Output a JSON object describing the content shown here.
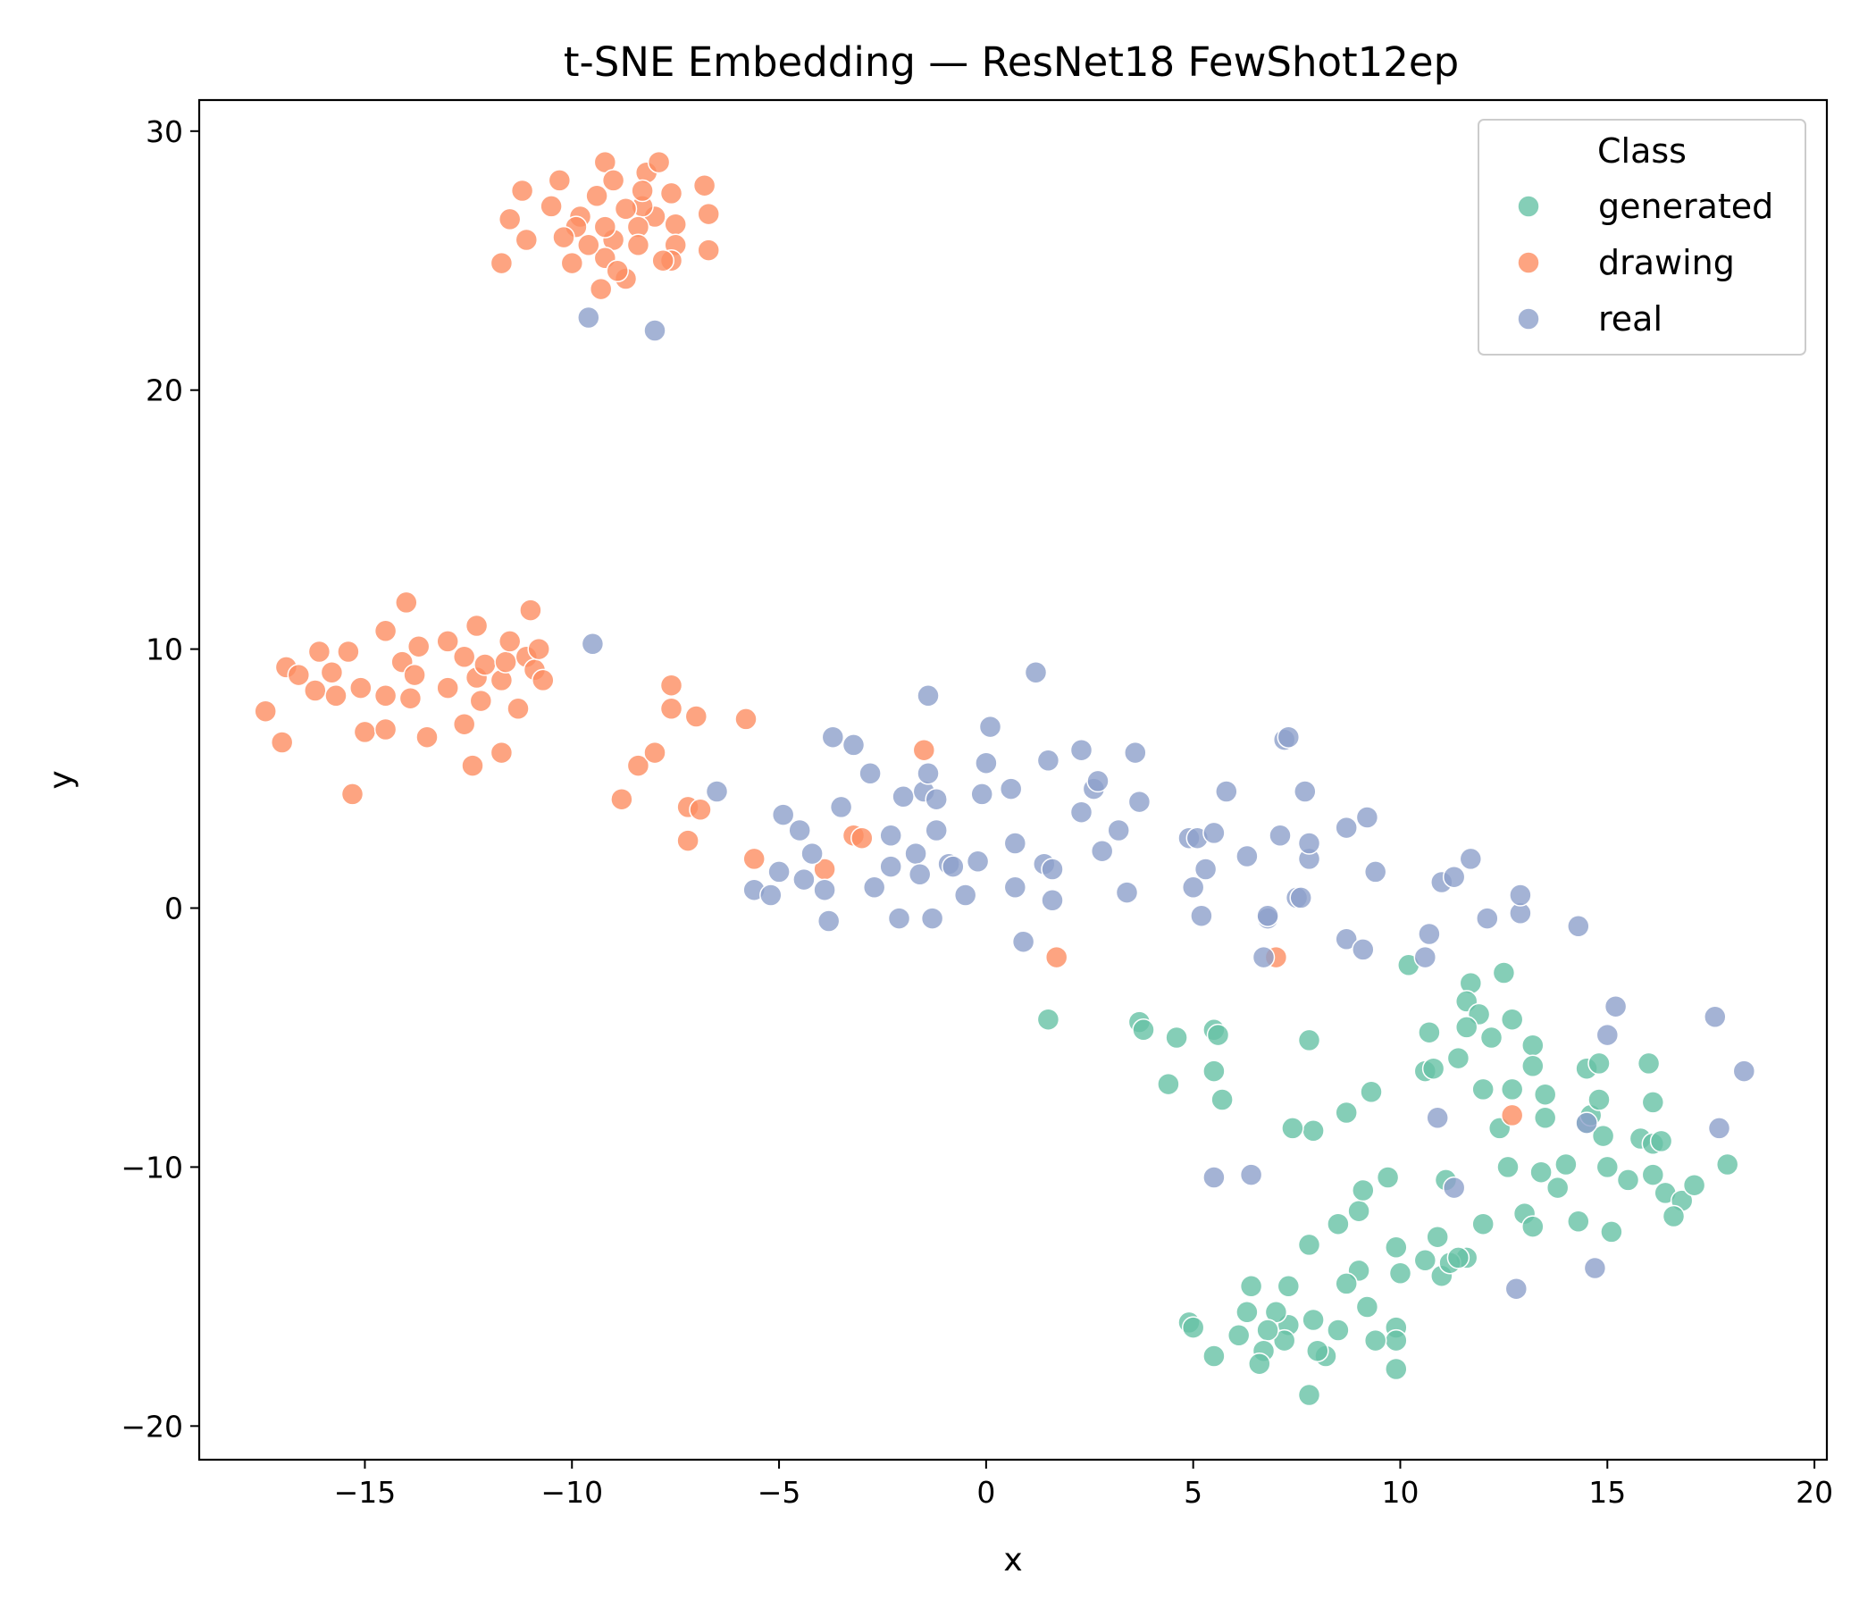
{
  "chart_data": {
    "type": "scatter",
    "title": "t-SNE Embedding — ResNet18 FewShot12ep",
    "xlabel": "x",
    "ylabel": "y",
    "xlim": [
      -19,
      20.3
    ],
    "ylim": [
      -21.3,
      31.2
    ],
    "xticks": [
      -15,
      -10,
      -5,
      0,
      5,
      10,
      15,
      20
    ],
    "yticks": [
      30,
      20,
      10,
      0,
      -10,
      -20
    ],
    "grid": false,
    "legend": {
      "title": "Class",
      "placement": "top-right"
    },
    "series": [
      {
        "name": "generated",
        "color": "#66c2a5",
        "points": [
          [
            10.2,
            -2.2
          ],
          [
            11.7,
            -2.9
          ],
          [
            12.5,
            -2.5
          ],
          [
            11.6,
            -3.6
          ],
          [
            11.9,
            -4.1
          ],
          [
            11.6,
            -4.6
          ],
          [
            12.2,
            -5.0
          ],
          [
            10.7,
            -4.8
          ],
          [
            10.6,
            -6.3
          ],
          [
            10.8,
            -6.2
          ],
          [
            11.4,
            -5.8
          ],
          [
            12.0,
            -7.0
          ],
          [
            12.4,
            -8.5
          ],
          [
            12.7,
            -7.0
          ],
          [
            12.7,
            -4.3
          ],
          [
            13.2,
            -5.3
          ],
          [
            13.5,
            -7.2
          ],
          [
            13.5,
            -8.1
          ],
          [
            13.2,
            -6.1
          ],
          [
            12.6,
            -10.0
          ],
          [
            13.4,
            -10.2
          ],
          [
            14.0,
            -9.9
          ],
          [
            13.8,
            -10.8
          ],
          [
            14.5,
            -8.3
          ],
          [
            14.6,
            -8.0
          ],
          [
            14.9,
            -8.8
          ],
          [
            14.8,
            -7.4
          ],
          [
            14.5,
            -6.2
          ],
          [
            14.8,
            -6.0
          ],
          [
            15.0,
            -10.0
          ],
          [
            15.5,
            -10.5
          ],
          [
            15.8,
            -8.9
          ],
          [
            16.1,
            -9.1
          ],
          [
            16.3,
            -9.0
          ],
          [
            16.1,
            -10.3
          ],
          [
            16.1,
            -7.5
          ],
          [
            16.0,
            -6.0
          ],
          [
            16.4,
            -11.0
          ],
          [
            16.8,
            -11.3
          ],
          [
            17.1,
            -10.7
          ],
          [
            16.6,
            -11.9
          ],
          [
            17.9,
            -9.9
          ],
          [
            15.1,
            -12.5
          ],
          [
            14.3,
            -12.1
          ],
          [
            13.0,
            -11.8
          ],
          [
            13.2,
            -12.3
          ],
          [
            12.0,
            -12.2
          ],
          [
            11.6,
            -13.5
          ],
          [
            11.0,
            -14.2
          ],
          [
            11.2,
            -13.7
          ],
          [
            10.6,
            -13.6
          ],
          [
            10.9,
            -12.7
          ],
          [
            11.1,
            -10.5
          ],
          [
            9.9,
            -13.1
          ],
          [
            10.0,
            -14.1
          ],
          [
            9.7,
            -10.4
          ],
          [
            9.9,
            -16.2
          ],
          [
            9.9,
            -16.7
          ],
          [
            9.9,
            -17.8
          ],
          [
            9.4,
            -16.7
          ],
          [
            9.2,
            -15.4
          ],
          [
            9.0,
            -14.0
          ],
          [
            9.0,
            -11.7
          ],
          [
            9.1,
            -10.9
          ],
          [
            9.3,
            -7.1
          ],
          [
            8.7,
            -7.9
          ],
          [
            8.7,
            -14.5
          ],
          [
            8.5,
            -12.2
          ],
          [
            8.5,
            -16.3
          ],
          [
            8.2,
            -17.3
          ],
          [
            8.0,
            -17.1
          ],
          [
            7.9,
            -15.9
          ],
          [
            7.8,
            -13.0
          ],
          [
            7.8,
            -5.1
          ],
          [
            7.9,
            -8.6
          ],
          [
            7.4,
            -8.5
          ],
          [
            7.3,
            -14.6
          ],
          [
            7.3,
            -16.1
          ],
          [
            7.2,
            -16.7
          ],
          [
            7.0,
            -15.6
          ],
          [
            6.8,
            -16.3
          ],
          [
            6.7,
            -17.1
          ],
          [
            6.6,
            -17.6
          ],
          [
            6.3,
            -15.6
          ],
          [
            6.4,
            -14.6
          ],
          [
            6.1,
            -16.5
          ],
          [
            5.5,
            -17.3
          ],
          [
            4.9,
            -16.0
          ],
          [
            5.0,
            -16.2
          ],
          [
            5.7,
            -7.4
          ],
          [
            5.5,
            -6.3
          ],
          [
            5.5,
            -4.7
          ],
          [
            5.6,
            -4.9
          ],
          [
            4.6,
            -5.0
          ],
          [
            4.4,
            -6.8
          ],
          [
            3.7,
            -4.4
          ],
          [
            3.8,
            -4.7
          ],
          [
            1.5,
            -4.3
          ],
          [
            7.8,
            -18.8
          ],
          [
            11.4,
            -13.5
          ]
        ]
      },
      {
        "name": "drawing",
        "color": "#fc8d62",
        "points": [
          [
            -9.2,
            28.8
          ],
          [
            -9.0,
            28.1
          ],
          [
            -8.2,
            28.4
          ],
          [
            -7.9,
            28.8
          ],
          [
            -6.8,
            27.9
          ],
          [
            -6.7,
            26.8
          ],
          [
            -6.7,
            25.4
          ],
          [
            -7.6,
            27.6
          ],
          [
            -7.5,
            26.4
          ],
          [
            -7.5,
            25.6
          ],
          [
            -7.6,
            25.0
          ],
          [
            -7.8,
            25.0
          ],
          [
            -8.0,
            26.7
          ],
          [
            -8.3,
            27.1
          ],
          [
            -8.4,
            26.3
          ],
          [
            -8.4,
            25.6
          ],
          [
            -8.7,
            27.0
          ],
          [
            -8.7,
            24.3
          ],
          [
            -9.0,
            25.8
          ],
          [
            -9.2,
            26.3
          ],
          [
            -9.2,
            25.1
          ],
          [
            -9.3,
            23.9
          ],
          [
            -9.4,
            27.5
          ],
          [
            -9.6,
            25.6
          ],
          [
            -9.8,
            26.7
          ],
          [
            -9.9,
            26.3
          ],
          [
            -10.0,
            24.9
          ],
          [
            -10.2,
            25.9
          ],
          [
            -10.3,
            28.1
          ],
          [
            -10.5,
            27.1
          ],
          [
            -11.1,
            25.8
          ],
          [
            -11.2,
            27.7
          ],
          [
            -11.5,
            26.6
          ],
          [
            -11.7,
            24.9
          ],
          [
            -8.3,
            27.7
          ],
          [
            -8.9,
            24.6
          ],
          [
            -17.4,
            7.6
          ],
          [
            -17.0,
            6.4
          ],
          [
            -16.9,
            9.3
          ],
          [
            -16.6,
            9.0
          ],
          [
            -16.2,
            8.4
          ],
          [
            -16.1,
            9.9
          ],
          [
            -15.8,
            9.1
          ],
          [
            -15.7,
            8.2
          ],
          [
            -15.4,
            9.9
          ],
          [
            -15.3,
            4.4
          ],
          [
            -15.1,
            8.5
          ],
          [
            -15.0,
            6.8
          ],
          [
            -14.5,
            10.7
          ],
          [
            -14.5,
            8.2
          ],
          [
            -14.5,
            6.9
          ],
          [
            -14.1,
            9.5
          ],
          [
            -14.0,
            11.8
          ],
          [
            -13.9,
            8.1
          ],
          [
            -13.8,
            9.0
          ],
          [
            -13.7,
            10.1
          ],
          [
            -13.5,
            6.6
          ],
          [
            -13.0,
            10.3
          ],
          [
            -13.0,
            8.5
          ],
          [
            -12.6,
            9.7
          ],
          [
            -12.6,
            7.1
          ],
          [
            -12.4,
            5.5
          ],
          [
            -12.3,
            10.9
          ],
          [
            -12.3,
            8.9
          ],
          [
            -12.2,
            8.0
          ],
          [
            -12.1,
            9.4
          ],
          [
            -11.7,
            6.0
          ],
          [
            -11.7,
            8.8
          ],
          [
            -11.6,
            9.5
          ],
          [
            -11.5,
            10.3
          ],
          [
            -11.3,
            7.7
          ],
          [
            -11.1,
            9.7
          ],
          [
            -11.0,
            11.5
          ],
          [
            -10.9,
            9.2
          ],
          [
            -10.8,
            10.0
          ],
          [
            -10.7,
            8.8
          ],
          [
            -8.8,
            4.2
          ],
          [
            -8.4,
            5.5
          ],
          [
            -8.0,
            6.0
          ],
          [
            -7.6,
            8.6
          ],
          [
            -7.6,
            7.7
          ],
          [
            -7.2,
            3.9
          ],
          [
            -7.2,
            2.6
          ],
          [
            -7.0,
            7.4
          ],
          [
            -6.9,
            3.8
          ],
          [
            -5.8,
            7.3
          ],
          [
            -5.6,
            1.9
          ],
          [
            -3.9,
            1.5
          ],
          [
            -3.2,
            2.8
          ],
          [
            -3.0,
            2.7
          ],
          [
            -1.5,
            6.1
          ],
          [
            1.7,
            -1.9
          ],
          [
            7.0,
            -1.9
          ],
          [
            12.7,
            -8.0
          ]
        ]
      },
      {
        "name": "real",
        "color": "#8da0cb",
        "points": [
          [
            -9.6,
            22.8
          ],
          [
            -8.0,
            22.3
          ],
          [
            -9.5,
            10.2
          ],
          [
            -6.5,
            4.5
          ],
          [
            -5.6,
            0.7
          ],
          [
            -5.2,
            0.5
          ],
          [
            -5.0,
            1.4
          ],
          [
            -4.9,
            3.6
          ],
          [
            -4.5,
            3.0
          ],
          [
            -4.4,
            1.1
          ],
          [
            -4.2,
            2.1
          ],
          [
            -3.9,
            0.7
          ],
          [
            -3.8,
            -0.5
          ],
          [
            -3.7,
            6.6
          ],
          [
            -3.5,
            3.9
          ],
          [
            -3.2,
            6.3
          ],
          [
            -2.8,
            5.2
          ],
          [
            -2.7,
            0.8
          ],
          [
            -2.3,
            2.8
          ],
          [
            -2.3,
            1.6
          ],
          [
            -2.1,
            -0.4
          ],
          [
            -2.0,
            4.3
          ],
          [
            -1.7,
            2.1
          ],
          [
            -1.6,
            1.3
          ],
          [
            -1.5,
            4.5
          ],
          [
            -1.4,
            8.2
          ],
          [
            -1.4,
            5.2
          ],
          [
            -1.3,
            -0.4
          ],
          [
            -1.2,
            4.2
          ],
          [
            -1.2,
            3.0
          ],
          [
            -0.9,
            1.7
          ],
          [
            -0.8,
            1.6
          ],
          [
            -0.5,
            0.5
          ],
          [
            -0.2,
            1.8
          ],
          [
            -0.1,
            4.4
          ],
          [
            0.0,
            5.6
          ],
          [
            0.1,
            7.0
          ],
          [
            0.6,
            4.6
          ],
          [
            0.7,
            2.5
          ],
          [
            0.7,
            0.8
          ],
          [
            0.9,
            -1.3
          ],
          [
            1.2,
            9.1
          ],
          [
            1.4,
            1.7
          ],
          [
            1.5,
            5.7
          ],
          [
            1.6,
            1.5
          ],
          [
            1.6,
            0.3
          ],
          [
            2.3,
            3.7
          ],
          [
            2.3,
            6.1
          ],
          [
            2.6,
            4.6
          ],
          [
            2.7,
            4.9
          ],
          [
            2.8,
            2.2
          ],
          [
            3.2,
            3.0
          ],
          [
            3.4,
            0.6
          ],
          [
            3.6,
            6.0
          ],
          [
            3.7,
            4.1
          ],
          [
            4.9,
            2.7
          ],
          [
            5.0,
            0.8
          ],
          [
            5.1,
            2.7
          ],
          [
            5.2,
            -0.3
          ],
          [
            5.3,
            1.5
          ],
          [
            5.5,
            2.9
          ],
          [
            5.8,
            4.5
          ],
          [
            6.3,
            2.0
          ],
          [
            6.7,
            -1.9
          ],
          [
            6.8,
            -0.4
          ],
          [
            6.8,
            -0.3
          ],
          [
            7.1,
            2.8
          ],
          [
            7.2,
            6.5
          ],
          [
            7.3,
            6.6
          ],
          [
            7.5,
            0.4
          ],
          [
            7.6,
            0.4
          ],
          [
            7.7,
            4.5
          ],
          [
            7.8,
            1.9
          ],
          [
            7.8,
            2.5
          ],
          [
            8.7,
            3.1
          ],
          [
            8.7,
            -1.2
          ],
          [
            9.1,
            -1.6
          ],
          [
            9.2,
            3.5
          ],
          [
            9.4,
            1.4
          ],
          [
            10.6,
            -1.9
          ],
          [
            10.7,
            -1.0
          ],
          [
            10.9,
            -8.1
          ],
          [
            11.0,
            1.0
          ],
          [
            11.3,
            1.2
          ],
          [
            11.7,
            1.9
          ],
          [
            12.1,
            -0.4
          ],
          [
            12.9,
            -0.2
          ],
          [
            12.9,
            0.5
          ],
          [
            12.8,
            -14.7
          ],
          [
            11.3,
            -10.8
          ],
          [
            14.3,
            -0.7
          ],
          [
            14.5,
            -8.3
          ],
          [
            15.0,
            -4.9
          ],
          [
            15.2,
            -3.8
          ],
          [
            14.7,
            -13.9
          ],
          [
            17.6,
            -4.2
          ],
          [
            17.7,
            -8.5
          ],
          [
            18.3,
            -6.3
          ],
          [
            5.5,
            -10.4
          ],
          [
            6.4,
            -10.3
          ]
        ]
      }
    ]
  }
}
